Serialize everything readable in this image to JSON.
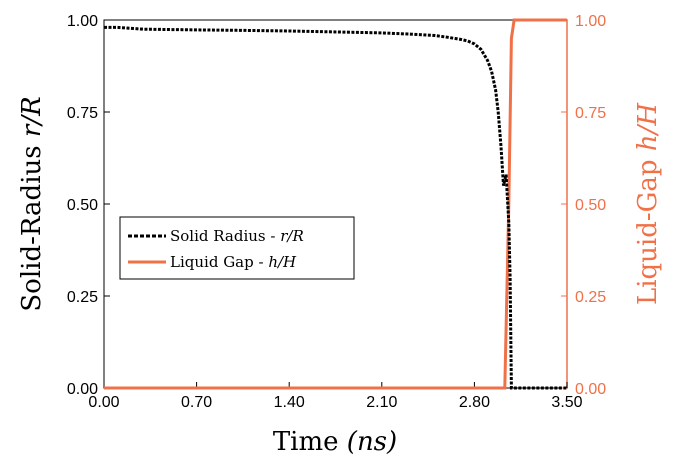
{
  "chart_data": {
    "type": "line",
    "xlabel": "Time (ns)",
    "xlabel_parts": {
      "prefix": "Time ",
      "var": "(ns)"
    },
    "ylabel_left": "Solid-Radius r/R",
    "ylabel_left_parts": {
      "prefix": "Solid-Radius ",
      "var": "r/R"
    },
    "ylabel_right": "Liquid-Gap h/H",
    "ylabel_right_parts": {
      "prefix": "Liquid-Gap ",
      "var": "h/H"
    },
    "xlim": [
      0.0,
      3.5
    ],
    "ylim_left": [
      0.0,
      1.0
    ],
    "ylim_right": [
      0.0,
      1.0
    ],
    "x_ticks": [
      "0.00",
      "0.70",
      "1.40",
      "2.10",
      "2.80",
      "3.50"
    ],
    "y_ticks_left": [
      "0.00",
      "0.25",
      "0.50",
      "0.75",
      "1.00"
    ],
    "y_ticks_right": [
      "0.00",
      "0.25",
      "0.50",
      "0.75",
      "1.00"
    ],
    "grid": false,
    "legend_position": "center-left",
    "colors": {
      "solid": "#000000",
      "liquid": "#f07048"
    },
    "series": [
      {
        "name": "Solid Radius - r/R",
        "legend_prefix": "Solid Radius - ",
        "legend_var": "r/R",
        "axis": "left",
        "style": "dashed",
        "x": [
          0.0,
          0.1,
          0.3,
          0.7,
          1.0,
          1.4,
          1.7,
          2.1,
          2.3,
          2.5,
          2.6,
          2.7,
          2.75,
          2.8,
          2.85,
          2.9,
          2.93,
          2.96,
          2.98,
          3.0,
          3.02,
          3.04,
          3.06,
          3.07,
          3.08,
          3.1,
          3.2,
          3.5
        ],
        "y": [
          0.98,
          0.98,
          0.975,
          0.973,
          0.972,
          0.97,
          0.968,
          0.965,
          0.962,
          0.958,
          0.953,
          0.947,
          0.943,
          0.935,
          0.92,
          0.89,
          0.86,
          0.81,
          0.75,
          0.66,
          0.55,
          0.58,
          0.45,
          0.3,
          0.0,
          0.0,
          0.0,
          0.0
        ]
      },
      {
        "name": "Liquid Gap - h/H",
        "legend_prefix": "Liquid Gap - ",
        "legend_var": "h/H",
        "axis": "right",
        "style": "solid",
        "x": [
          0.0,
          1.0,
          2.0,
          2.8,
          3.03,
          3.06,
          3.08,
          3.1,
          3.2,
          3.5
        ],
        "y": [
          0.0,
          0.0,
          0.0,
          0.0,
          0.0,
          0.5,
          0.95,
          1.0,
          1.0,
          1.0
        ]
      }
    ]
  }
}
